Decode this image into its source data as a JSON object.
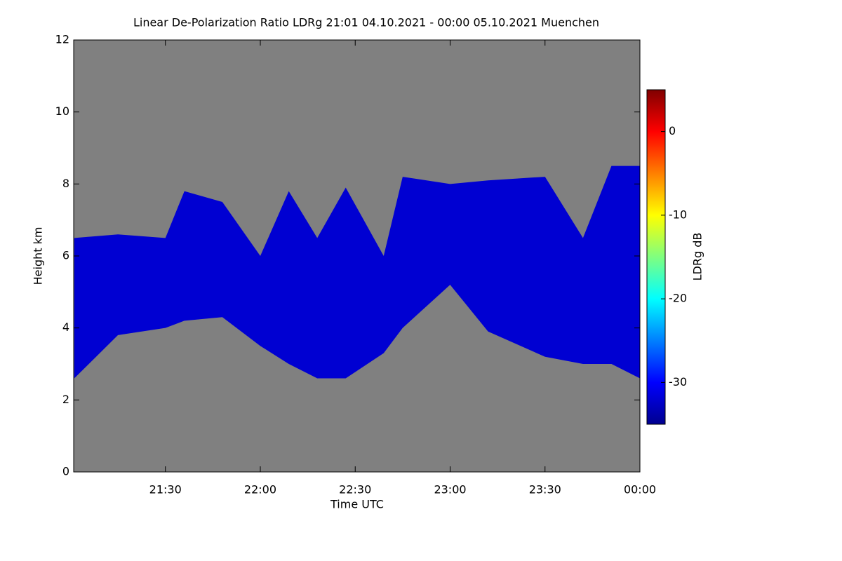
{
  "chart_data": {
    "type": "heatmap",
    "title": "Linear De-Polarization Ratio LDRg   21:01 04.10.2021 - 00:00 05.10.2021 Muenchen",
    "xlabel": "Time UTC",
    "ylabel": "Height km",
    "colorbar_label": "LDRg dB",
    "xlim": [
      21.0167,
      24
    ],
    "xticks": [
      {
        "value": 21.5,
        "label": "21:30"
      },
      {
        "value": 22,
        "label": "22:00"
      },
      {
        "value": 22.5,
        "label": "22:30"
      },
      {
        "value": 23,
        "label": "23:00"
      },
      {
        "value": 23.5,
        "label": "23:30"
      },
      {
        "value": 24,
        "label": "00:00"
      }
    ],
    "ylim": [
      0,
      12
    ],
    "yticks": [
      0,
      2,
      4,
      6,
      8,
      10,
      12
    ],
    "zlim": [
      -35,
      5
    ],
    "zticks": [
      -30,
      -20,
      -10,
      0
    ],
    "background": "#808080",
    "x": [
      21.02,
      21.25,
      21.5,
      21.6,
      21.8,
      22.0,
      22.15,
      22.3,
      22.45,
      22.65,
      22.75,
      23.0,
      23.2,
      23.5,
      23.7,
      23.85,
      24.0
    ],
    "cloud_top": [
      6.5,
      6.6,
      6.5,
      7.8,
      7.5,
      6.0,
      7.8,
      6.5,
      7.9,
      6.0,
      8.2,
      8.0,
      8.1,
      8.2,
      6.5,
      8.5,
      8.5
    ],
    "cloud_base": [
      2.6,
      3.8,
      4.0,
      4.2,
      4.3,
      3.5,
      3.0,
      2.6,
      2.6,
      3.3,
      4.0,
      5.2,
      3.9,
      3.2,
      3.0,
      3.0,
      2.6
    ],
    "cloud_value": -32
  }
}
